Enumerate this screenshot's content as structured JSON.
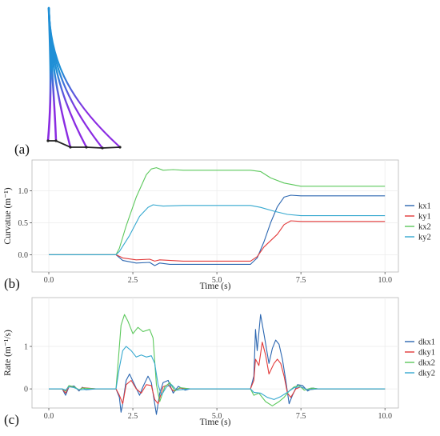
{
  "panels": {
    "a": {
      "letter": "(a)"
    },
    "b": {
      "letter": "(b)"
    },
    "c": {
      "letter": "(c)"
    }
  },
  "colors": {
    "kx1": "#2c67b1",
    "ky1": "#e23a3a",
    "kx2": "#5cc85c",
    "ky2": "#35a8cf",
    "rod_top": "#1f8fd6",
    "rod_bottom": "#8a2be2",
    "base": "#222222",
    "grid": "#ececec",
    "panel_border": "#b8b8b8"
  },
  "chart_data": [
    {
      "type": "line",
      "xlabel": "Time (s)",
      "ylabel": "Curvatue (m⁻¹)",
      "xlim": [
        -0.5,
        10.4
      ],
      "ylim": [
        -0.27,
        1.48
      ],
      "xticks": [
        0.0,
        2.5,
        5.0,
        7.5,
        10.0
      ],
      "xtick_labels": [
        "0.0",
        "2.5",
        "5.0",
        "7.5",
        "10.0"
      ],
      "yticks": [
        0.0,
        0.5,
        1.0
      ],
      "ytick_labels": [
        "0.0",
        "0.5",
        "1.0"
      ],
      "grid": true,
      "legend_position": "right",
      "series": [
        {
          "name": "kx1",
          "points": [
            [
              0,
              0
            ],
            [
              2,
              0
            ],
            [
              2.2,
              -0.09
            ],
            [
              2.6,
              -0.13
            ],
            [
              3.0,
              -0.12
            ],
            [
              3.15,
              -0.17
            ],
            [
              3.3,
              -0.13
            ],
            [
              3.6,
              -0.15
            ],
            [
              4.0,
              -0.15
            ],
            [
              6.0,
              -0.15
            ],
            [
              6.2,
              -0.05
            ],
            [
              6.4,
              0.2
            ],
            [
              6.6,
              0.5
            ],
            [
              6.8,
              0.75
            ],
            [
              7.0,
              0.9
            ],
            [
              7.2,
              0.93
            ],
            [
              7.5,
              0.92
            ],
            [
              10,
              0.92
            ]
          ]
        },
        {
          "name": "ky1",
          "points": [
            [
              0,
              0
            ],
            [
              2,
              0
            ],
            [
              2.2,
              -0.05
            ],
            [
              2.6,
              -0.08
            ],
            [
              3.0,
              -0.07
            ],
            [
              3.15,
              -0.1
            ],
            [
              3.3,
              -0.08
            ],
            [
              4.0,
              -0.1
            ],
            [
              6.0,
              -0.1
            ],
            [
              6.2,
              -0.03
            ],
            [
              6.4,
              0.12
            ],
            [
              6.8,
              0.32
            ],
            [
              7.0,
              0.47
            ],
            [
              7.2,
              0.53
            ],
            [
              7.5,
              0.52
            ],
            [
              10,
              0.52
            ]
          ]
        },
        {
          "name": "kx2",
          "points": [
            [
              0,
              0
            ],
            [
              2,
              0
            ],
            [
              2.1,
              0.1
            ],
            [
              2.3,
              0.45
            ],
            [
              2.6,
              0.9
            ],
            [
              2.9,
              1.25
            ],
            [
              3.05,
              1.34
            ],
            [
              3.2,
              1.36
            ],
            [
              3.4,
              1.32
            ],
            [
              3.7,
              1.33
            ],
            [
              4.0,
              1.32
            ],
            [
              6.0,
              1.32
            ],
            [
              6.3,
              1.3
            ],
            [
              6.6,
              1.2
            ],
            [
              7.0,
              1.12
            ],
            [
              7.5,
              1.07
            ],
            [
              10,
              1.07
            ]
          ]
        },
        {
          "name": "ky2",
          "points": [
            [
              0,
              0
            ],
            [
              2,
              0
            ],
            [
              2.1,
              0.05
            ],
            [
              2.4,
              0.3
            ],
            [
              2.7,
              0.6
            ],
            [
              2.95,
              0.74
            ],
            [
              3.1,
              0.78
            ],
            [
              3.4,
              0.76
            ],
            [
              4.0,
              0.77
            ],
            [
              6.0,
              0.77
            ],
            [
              6.3,
              0.74
            ],
            [
              6.7,
              0.68
            ],
            [
              7.1,
              0.63
            ],
            [
              7.5,
              0.61
            ],
            [
              10,
              0.61
            ]
          ]
        }
      ]
    },
    {
      "type": "line",
      "xlabel": "Time (s)",
      "ylabel": "Rate (m⁻¹/s)",
      "xlim": [
        -0.5,
        10.4
      ],
      "ylim": [
        -0.45,
        2.15
      ],
      "xticks": [
        0.0,
        2.5,
        5.0,
        7.5,
        10.0
      ],
      "xtick_labels": [
        "0.0",
        "2.5",
        "5.0",
        "7.5",
        "10.0"
      ],
      "yticks": [
        0,
        1
      ],
      "ytick_labels": [
        "0",
        "1"
      ],
      "grid": true,
      "legend_position": "right",
      "series": [
        {
          "name": "dkx1",
          "points": [
            [
              0,
              0
            ],
            [
              0.4,
              0
            ],
            [
              0.5,
              -0.15
            ],
            [
              0.6,
              0.05
            ],
            [
              0.75,
              0.07
            ],
            [
              0.9,
              -0.05
            ],
            [
              1.0,
              0.04
            ],
            [
              1.1,
              -0.02
            ],
            [
              1.4,
              0
            ],
            [
              2.0,
              0
            ],
            [
              2.1,
              -0.2
            ],
            [
              2.15,
              -0.55
            ],
            [
              2.2,
              -0.35
            ],
            [
              2.3,
              0.2
            ],
            [
              2.4,
              0.35
            ],
            [
              2.55,
              0.1
            ],
            [
              2.7,
              -0.15
            ],
            [
              2.8,
              0.05
            ],
            [
              2.95,
              0.3
            ],
            [
              3.05,
              0.15
            ],
            [
              3.15,
              -0.35
            ],
            [
              3.2,
              -0.6
            ],
            [
              3.3,
              -0.1
            ],
            [
              3.4,
              0.15
            ],
            [
              3.55,
              0.2
            ],
            [
              3.7,
              -0.1
            ],
            [
              3.85,
              0.06
            ],
            [
              4.05,
              -0.03
            ],
            [
              4.2,
              0
            ],
            [
              6.0,
              0
            ],
            [
              6.1,
              0.3
            ],
            [
              6.15,
              1.4
            ],
            [
              6.2,
              0.9
            ],
            [
              6.3,
              1.75
            ],
            [
              6.4,
              1.3
            ],
            [
              6.55,
              0.6
            ],
            [
              6.65,
              0.95
            ],
            [
              6.75,
              1.15
            ],
            [
              6.85,
              1.05
            ],
            [
              6.95,
              0.7
            ],
            [
              7.05,
              0.2
            ],
            [
              7.15,
              -0.35
            ],
            [
              7.25,
              -0.15
            ],
            [
              7.4,
              0.1
            ],
            [
              7.55,
              0.08
            ],
            [
              7.7,
              -0.05
            ],
            [
              7.85,
              0.02
            ],
            [
              8.0,
              0
            ],
            [
              10,
              0
            ]
          ]
        },
        {
          "name": "dky1",
          "points": [
            [
              0,
              0
            ],
            [
              0.4,
              0
            ],
            [
              0.5,
              -0.1
            ],
            [
              0.6,
              0.05
            ],
            [
              0.75,
              0.05
            ],
            [
              0.9,
              -0.03
            ],
            [
              1.0,
              0.03
            ],
            [
              1.4,
              0
            ],
            [
              2.0,
              0
            ],
            [
              2.1,
              -0.15
            ],
            [
              2.2,
              -0.35
            ],
            [
              2.3,
              0.1
            ],
            [
              2.45,
              0.2
            ],
            [
              2.6,
              0
            ],
            [
              2.75,
              -0.1
            ],
            [
              2.9,
              0.1
            ],
            [
              3.05,
              0.08
            ],
            [
              3.15,
              -0.25
            ],
            [
              3.25,
              -0.35
            ],
            [
              3.4,
              0.05
            ],
            [
              3.55,
              0.1
            ],
            [
              3.7,
              -0.05
            ],
            [
              3.9,
              0.02
            ],
            [
              4.2,
              0
            ],
            [
              6.0,
              0
            ],
            [
              6.1,
              0.2
            ],
            [
              6.15,
              0.7
            ],
            [
              6.25,
              0.55
            ],
            [
              6.35,
              1.1
            ],
            [
              6.45,
              0.8
            ],
            [
              6.55,
              0.35
            ],
            [
              6.7,
              0.6
            ],
            [
              6.8,
              0.7
            ],
            [
              6.9,
              0.6
            ],
            [
              7.0,
              0.3
            ],
            [
              7.1,
              -0.1
            ],
            [
              7.2,
              -0.2
            ],
            [
              7.35,
              0
            ],
            [
              7.5,
              0.05
            ],
            [
              7.7,
              -0.02
            ],
            [
              8.0,
              0
            ],
            [
              10,
              0
            ]
          ]
        },
        {
          "name": "dkx2",
          "points": [
            [
              0,
              0
            ],
            [
              0.4,
              0
            ],
            [
              0.5,
              -0.05
            ],
            [
              0.6,
              0.08
            ],
            [
              0.75,
              0.05
            ],
            [
              0.9,
              -0.02
            ],
            [
              1.0,
              0.02
            ],
            [
              1.4,
              0
            ],
            [
              2.0,
              0
            ],
            [
              2.08,
              0.8
            ],
            [
              2.15,
              1.5
            ],
            [
              2.25,
              1.75
            ],
            [
              2.35,
              1.6
            ],
            [
              2.5,
              1.3
            ],
            [
              2.65,
              1.45
            ],
            [
              2.8,
              1.35
            ],
            [
              3.0,
              1.4
            ],
            [
              3.1,
              1.2
            ],
            [
              3.2,
              0.1
            ],
            [
              3.3,
              -0.3
            ],
            [
              3.45,
              0.05
            ],
            [
              3.6,
              0.15
            ],
            [
              3.75,
              -0.05
            ],
            [
              3.9,
              0.03
            ],
            [
              4.2,
              0
            ],
            [
              6.0,
              0
            ],
            [
              6.1,
              -0.15
            ],
            [
              6.25,
              -0.1
            ],
            [
              6.45,
              -0.3
            ],
            [
              6.65,
              -0.4
            ],
            [
              6.85,
              -0.3
            ],
            [
              7.0,
              -0.2
            ],
            [
              7.15,
              -0.05
            ],
            [
              7.3,
              0.05
            ],
            [
              7.45,
              0.08
            ],
            [
              7.6,
              -0.03
            ],
            [
              7.8,
              0.02
            ],
            [
              8.0,
              0
            ],
            [
              10,
              0
            ]
          ]
        },
        {
          "name": "dky2",
          "points": [
            [
              0,
              0
            ],
            [
              0.4,
              0
            ],
            [
              0.5,
              -0.03
            ],
            [
              0.6,
              0.05
            ],
            [
              0.75,
              0.03
            ],
            [
              0.9,
              -0.02
            ],
            [
              1.4,
              0
            ],
            [
              2.0,
              0
            ],
            [
              2.1,
              0.5
            ],
            [
              2.2,
              0.9
            ],
            [
              2.3,
              1.0
            ],
            [
              2.45,
              0.9
            ],
            [
              2.6,
              0.75
            ],
            [
              2.75,
              0.8
            ],
            [
              2.9,
              0.75
            ],
            [
              3.05,
              0.78
            ],
            [
              3.15,
              0.6
            ],
            [
              3.25,
              0.1
            ],
            [
              3.35,
              -0.15
            ],
            [
              3.5,
              0.05
            ],
            [
              3.65,
              0.1
            ],
            [
              3.8,
              -0.03
            ],
            [
              4.2,
              0
            ],
            [
              6.0,
              0
            ],
            [
              6.1,
              -0.08
            ],
            [
              6.3,
              -0.1
            ],
            [
              6.5,
              -0.2
            ],
            [
              6.7,
              -0.25
            ],
            [
              6.9,
              -0.18
            ],
            [
              7.1,
              -0.08
            ],
            [
              7.3,
              0.03
            ],
            [
              7.5,
              0.05
            ],
            [
              7.7,
              -0.02
            ],
            [
              8.0,
              0
            ],
            [
              10,
              0
            ]
          ]
        }
      ]
    }
  ]
}
